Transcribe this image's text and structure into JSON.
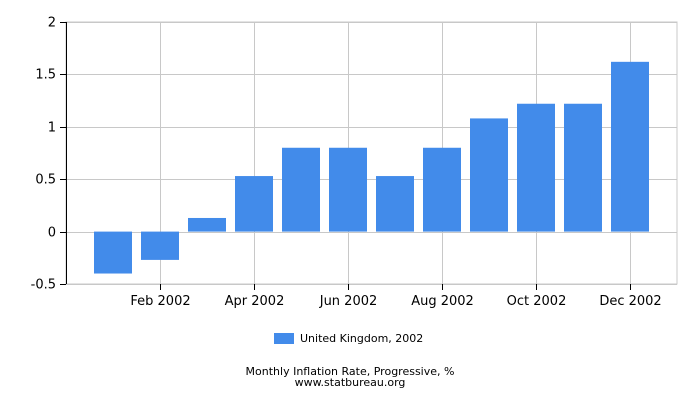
{
  "chart_data": {
    "type": "bar",
    "title": "",
    "xlabel": "",
    "ylabel": "",
    "categories": [
      "Jan 2002",
      "Feb 2002",
      "Mar 2002",
      "Apr 2002",
      "May 2002",
      "Jun 2002",
      "Jul 2002",
      "Aug 2002",
      "Sep 2002",
      "Oct 2002",
      "Nov 2002",
      "Dec 2002"
    ],
    "x_tick_labels": [
      "Feb 2002",
      "Apr 2002",
      "Jun 2002",
      "Aug 2002",
      "Oct 2002",
      "Dec 2002"
    ],
    "y_tick_labels": [
      "2",
      "1.5",
      "1",
      "0.5",
      "0",
      "-0.5"
    ],
    "y_ticks": [
      2,
      1.5,
      1,
      0.5,
      0,
      -0.5
    ],
    "ylim": [
      -0.5,
      2
    ],
    "grid": true,
    "legend_position": "bottom-center",
    "series": [
      {
        "name": "United Kingdom, 2002",
        "color": "#428bea",
        "values": [
          -0.4,
          -0.27,
          0.13,
          0.53,
          0.8,
          0.8,
          0.53,
          0.8,
          1.08,
          1.22,
          1.22,
          1.62
        ]
      }
    ]
  },
  "legend": {
    "label": "United Kingdom, 2002",
    "color": "#428bea"
  },
  "footer": {
    "caption": "Monthly Inflation Rate, Progressive, %",
    "source": "www.statbureau.org"
  }
}
